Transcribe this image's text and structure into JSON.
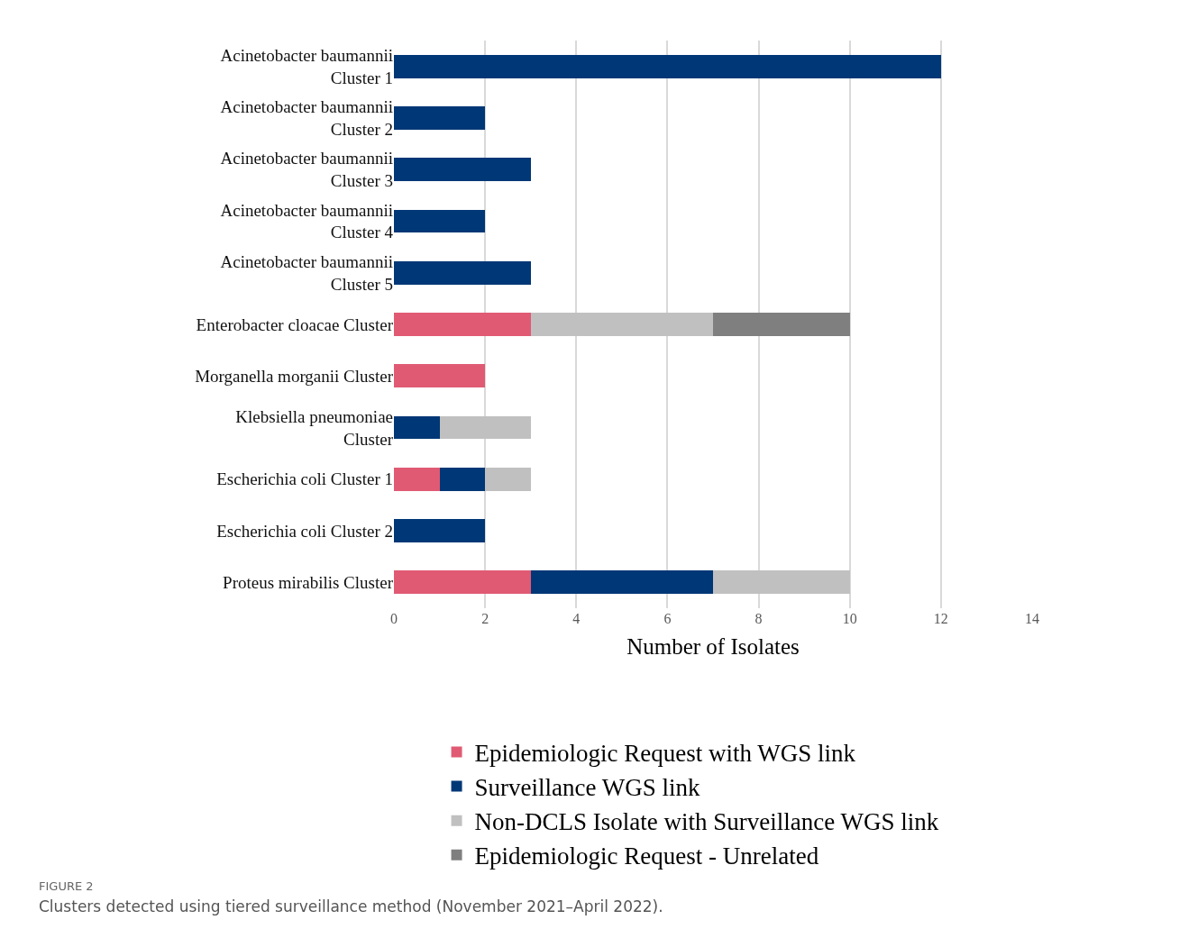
{
  "chart_data": {
    "type": "bar",
    "orientation": "horizontal",
    "stacked": true,
    "categories": [
      "Acinetobacter baumannii Cluster 1",
      "Acinetobacter baumannii Cluster 2",
      "Acinetobacter baumannii Cluster 3",
      "Acinetobacter baumannii Cluster 4",
      "Acinetobacter baumannii Cluster 5",
      "Enterobacter cloacae Cluster",
      "Morganella morganii Cluster",
      "Klebsiella pneumoniae Cluster",
      "Escherichia coli Cluster 1",
      "Escherichia coli Cluster 2",
      "Proteus mirabilis Cluster"
    ],
    "series": [
      {
        "name": "Epidemiologic Request with WGS link",
        "color": "#e05a73",
        "values": [
          0,
          0,
          0,
          0,
          0,
          3,
          2,
          0,
          1,
          0,
          3
        ]
      },
      {
        "name": "Surveillance WGS link",
        "color": "#003776",
        "values": [
          12,
          2,
          3,
          2,
          3,
          0,
          0,
          1,
          1,
          2,
          4
        ]
      },
      {
        "name": "Non-DCLS Isolate with Surveillance WGS link",
        "color": "#c0c0c0",
        "values": [
          0,
          0,
          0,
          0,
          0,
          4,
          0,
          2,
          1,
          0,
          3
        ]
      },
      {
        "name": "Epidemiologic Request - Unrelated",
        "color": "#7f7f7f",
        "values": [
          0,
          0,
          0,
          0,
          0,
          3,
          0,
          0,
          0,
          0,
          0
        ]
      }
    ],
    "xlabel": "Number of Isolates",
    "xlim": [
      0,
      14
    ],
    "xticks": [
      0,
      2,
      4,
      6,
      8,
      10,
      12,
      14
    ],
    "grid": "x",
    "legend": "bottom",
    "annotations": [
      "FIGURE 2",
      "Clusters detected using tiered surveillance method (November 2021–April 2022)."
    ]
  }
}
